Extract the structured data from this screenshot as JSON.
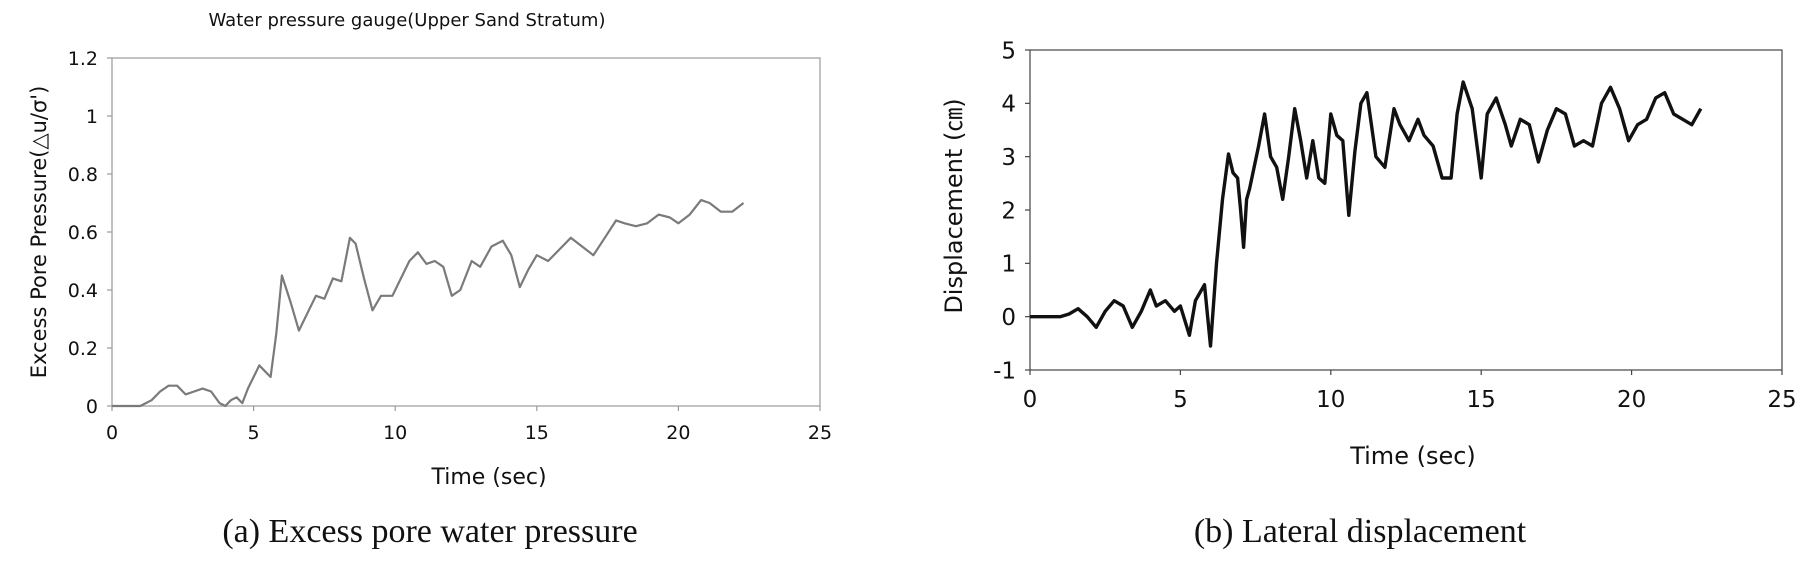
{
  "chart_data": [
    {
      "type": "line",
      "title": "Water pressure gauge(Upper Sand Stratum)",
      "xlabel": "Time (sec)",
      "ylabel": "Excess Pore Pressure(△u/σ')",
      "caption": "(a) Excess pore water pressure",
      "xlim": [
        0,
        25
      ],
      "ylim": [
        0,
        1.2
      ],
      "xticks": [
        "0",
        "5",
        "10",
        "15",
        "20",
        "25"
      ],
      "yticks": [
        "0",
        "0.2",
        "0.4",
        "0.6",
        "0.8",
        "1",
        "1.2"
      ],
      "grid": false,
      "line_color": "#7a7a7a",
      "series": [
        {
          "x": [
            0,
            0.5,
            1.0,
            1.4,
            1.7,
            2.0,
            2.3,
            2.6,
            2.9,
            3.2,
            3.5,
            3.8,
            4.0,
            4.2,
            4.4,
            4.6,
            4.8,
            5.0,
            5.2,
            5.4,
            5.6,
            5.8,
            6.0,
            6.3,
            6.6,
            6.9,
            7.2,
            7.5,
            7.8,
            8.1,
            8.4,
            8.6,
            8.9,
            9.2,
            9.5,
            9.9,
            10.2,
            10.5,
            10.8,
            11.1,
            11.4,
            11.7,
            12.0,
            12.3,
            12.7,
            13.0,
            13.4,
            13.8,
            14.1,
            14.4,
            14.7,
            15.0,
            15.4,
            15.8,
            16.2,
            16.6,
            17.0,
            17.4,
            17.8,
            18.1,
            18.5,
            18.9,
            19.3,
            19.7,
            20.0,
            20.4,
            20.8,
            21.1,
            21.5,
            21.9,
            22.3
          ],
          "y": [
            0,
            0,
            0,
            0.02,
            0.05,
            0.07,
            0.07,
            0.04,
            0.05,
            0.06,
            0.05,
            0.01,
            0.0,
            0.02,
            0.03,
            0.01,
            0.06,
            0.1,
            0.14,
            0.12,
            0.1,
            0.25,
            0.45,
            0.36,
            0.26,
            0.32,
            0.38,
            0.37,
            0.44,
            0.43,
            0.58,
            0.56,
            0.44,
            0.33,
            0.38,
            0.38,
            0.44,
            0.5,
            0.53,
            0.49,
            0.5,
            0.48,
            0.38,
            0.4,
            0.5,
            0.48,
            0.55,
            0.57,
            0.52,
            0.41,
            0.47,
            0.52,
            0.5,
            0.54,
            0.58,
            0.55,
            0.52,
            0.58,
            0.64,
            0.63,
            0.62,
            0.63,
            0.66,
            0.65,
            0.63,
            0.66,
            0.71,
            0.7,
            0.67,
            0.67,
            0.7
          ]
        }
      ]
    },
    {
      "type": "line",
      "title": "",
      "xlabel": "Time (sec)",
      "ylabel": "Displacement (㎝)",
      "caption": "(b) Lateral displacement",
      "xlim": [
        0,
        25
      ],
      "ylim": [
        -1,
        5
      ],
      "xticks": [
        "0",
        "5",
        "10",
        "15",
        "20",
        "25"
      ],
      "yticks": [
        "-1",
        "0",
        "1",
        "2",
        "3",
        "4",
        "5"
      ],
      "grid": false,
      "line_color": "#111111",
      "series": [
        {
          "x": [
            0,
            0.5,
            1.0,
            1.3,
            1.6,
            1.9,
            2.2,
            2.5,
            2.8,
            3.1,
            3.4,
            3.7,
            4.0,
            4.2,
            4.5,
            4.8,
            5.0,
            5.3,
            5.5,
            5.8,
            6.0,
            6.2,
            6.4,
            6.6,
            6.75,
            6.9,
            7.0,
            7.1,
            7.2,
            7.3,
            7.45,
            7.6,
            7.8,
            8.0,
            8.2,
            8.4,
            8.6,
            8.8,
            9.0,
            9.2,
            9.4,
            9.6,
            9.8,
            10.0,
            10.2,
            10.4,
            10.6,
            10.8,
            11.0,
            11.2,
            11.5,
            11.8,
            12.1,
            12.3,
            12.6,
            12.9,
            13.1,
            13.4,
            13.7,
            14.0,
            14.2,
            14.4,
            14.7,
            15.0,
            15.2,
            15.5,
            15.8,
            16.0,
            16.3,
            16.6,
            16.9,
            17.2,
            17.5,
            17.8,
            18.1,
            18.4,
            18.7,
            19.0,
            19.3,
            19.6,
            19.9,
            20.2,
            20.5,
            20.8,
            21.1,
            21.4,
            21.7,
            22.0,
            22.3
          ],
          "y": [
            0,
            0,
            0,
            0.05,
            0.15,
            0.0,
            -0.2,
            0.1,
            0.3,
            0.2,
            -0.2,
            0.1,
            0.5,
            0.2,
            0.3,
            0.1,
            0.2,
            -0.35,
            0.3,
            0.6,
            -0.55,
            1.0,
            2.2,
            3.05,
            2.7,
            2.6,
            2.0,
            1.3,
            2.2,
            2.4,
            2.8,
            3.2,
            3.8,
            3.0,
            2.8,
            2.2,
            3.0,
            3.9,
            3.3,
            2.6,
            3.3,
            2.6,
            2.5,
            3.8,
            3.4,
            3.3,
            1.9,
            3.1,
            4.0,
            4.2,
            3.0,
            2.8,
            3.9,
            3.6,
            3.3,
            3.7,
            3.4,
            3.2,
            2.6,
            2.6,
            3.8,
            4.4,
            3.9,
            2.6,
            3.8,
            4.1,
            3.6,
            3.2,
            3.7,
            3.6,
            2.9,
            3.5,
            3.9,
            3.8,
            3.2,
            3.3,
            3.2,
            4.0,
            4.3,
            3.9,
            3.3,
            3.6,
            3.7,
            4.1,
            4.2,
            3.8,
            3.7,
            3.6,
            3.9
          ]
        }
      ]
    }
  ]
}
